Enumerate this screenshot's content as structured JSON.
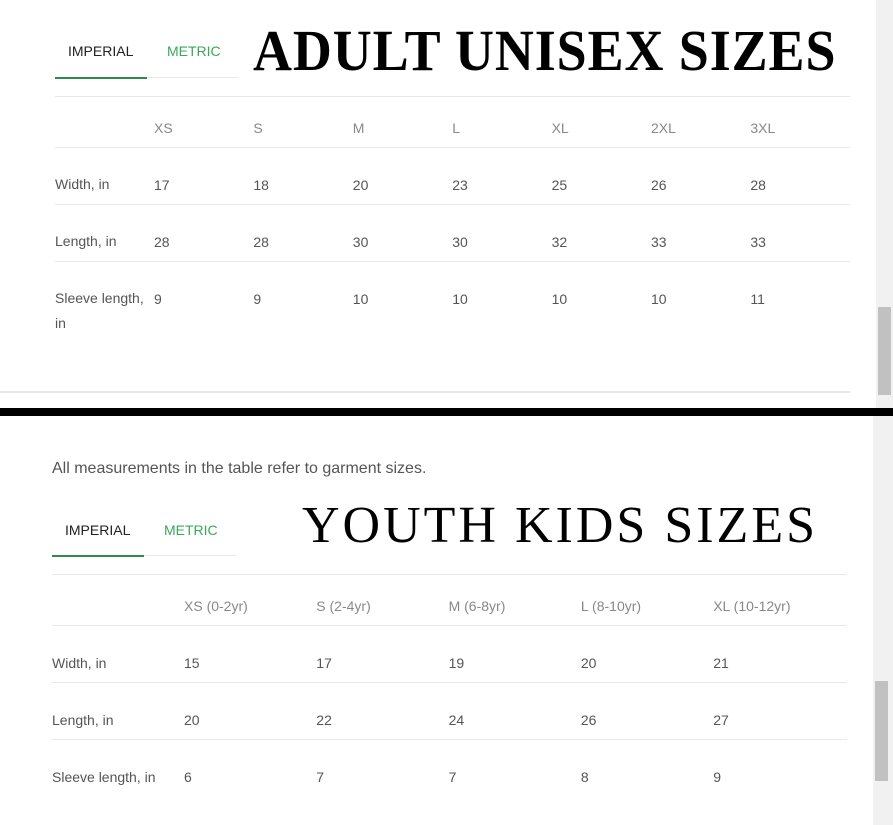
{
  "adult": {
    "tabs": [
      {
        "label": "IMPERIAL",
        "active": true
      },
      {
        "label": "METRIC",
        "active": false
      }
    ],
    "title": "ADULT UNISEX SIZES",
    "columns": [
      "XS",
      "S",
      "M",
      "L",
      "XL",
      "2XL",
      "3XL"
    ],
    "rows": [
      {
        "label": "Width, in",
        "values": [
          "17",
          "18",
          "20",
          "23",
          "25",
          "26",
          "28"
        ]
      },
      {
        "label": "Length, in",
        "values": [
          "28",
          "28",
          "30",
          "30",
          "32",
          "33",
          "33"
        ]
      },
      {
        "label": "Sleeve length, in",
        "values": [
          "9",
          "9",
          "10",
          "10",
          "10",
          "10",
          "11"
        ]
      }
    ]
  },
  "youth": {
    "note": "All measurements in the table refer to garment sizes.",
    "tabs": [
      {
        "label": "IMPERIAL",
        "active": true
      },
      {
        "label": "METRIC",
        "active": false
      }
    ],
    "title": "YOUTH KIDS SIZES",
    "columns": [
      "XS (0-2yr)",
      "S (2-4yr)",
      "M (6-8yr)",
      "L (8-10yr)",
      "XL (10-12yr)"
    ],
    "rows": [
      {
        "label": "Width, in",
        "values": [
          "15",
          "17",
          "19",
          "20",
          "21"
        ]
      },
      {
        "label": "Length, in",
        "values": [
          "20",
          "22",
          "24",
          "26",
          "27"
        ]
      },
      {
        "label": "Sleeve length, in",
        "values": [
          "6",
          "7",
          "7",
          "8",
          "9"
        ]
      }
    ]
  },
  "colors": {
    "accent": "#3aa85b",
    "underline": "#2e8b4e",
    "divider": "#000000"
  }
}
